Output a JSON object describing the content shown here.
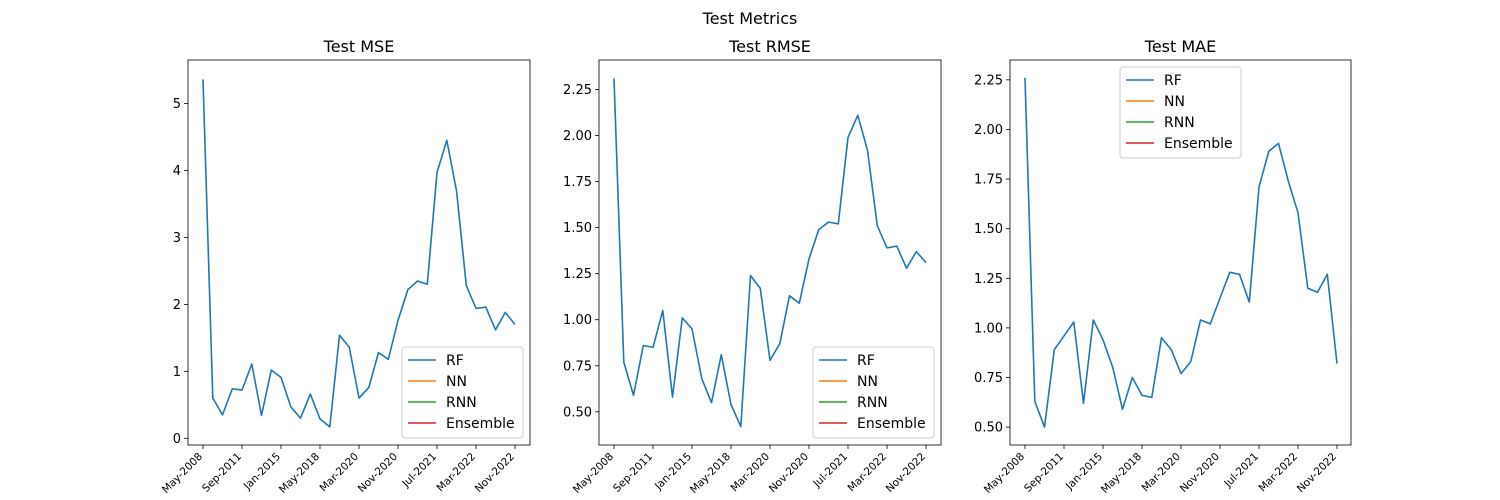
{
  "figure": {
    "suptitle": "Test Metrics"
  },
  "chart_data": [
    {
      "type": "line",
      "title": "Test MSE",
      "xlabel": "",
      "ylabel": "",
      "x_tick_labels": [
        "May-2008",
        "Sep-2011",
        "Jan-2015",
        "May-2018",
        "Mar-2020",
        "Nov-2020",
        "Jul-2021",
        "Mar-2022",
        "Nov-2022"
      ],
      "y_ticks": [
        0,
        1,
        2,
        3,
        4,
        5
      ],
      "ylim": [
        -0.1,
        5.65
      ],
      "legend": "lower-right",
      "series": [
        {
          "name": "RF",
          "color": "#1f77b4",
          "values": [
            5.36,
            0.6,
            0.35,
            0.74,
            0.72,
            1.11,
            0.34,
            1.02,
            0.91,
            0.47,
            0.3,
            0.66,
            0.29,
            0.17,
            1.54,
            1.36,
            0.6,
            0.76,
            1.28,
            1.18,
            1.76,
            2.22,
            2.35,
            2.3,
            3.97,
            4.45,
            3.7,
            2.28,
            1.94,
            1.96,
            1.62,
            1.88,
            1.7
          ]
        },
        {
          "name": "NN",
          "color": "#ff7f0e",
          "values": []
        },
        {
          "name": "RNN",
          "color": "#2ca02c",
          "values": []
        },
        {
          "name": "Ensemble",
          "color": "#d62728",
          "values": []
        }
      ]
    },
    {
      "type": "line",
      "title": "Test RMSE",
      "xlabel": "",
      "ylabel": "",
      "x_tick_labels": [
        "May-2008",
        "Sep-2011",
        "Jan-2015",
        "May-2018",
        "Mar-2020",
        "Nov-2020",
        "Jul-2021",
        "Mar-2022",
        "Nov-2022"
      ],
      "y_ticks": [
        0.5,
        0.75,
        1.0,
        1.25,
        1.5,
        1.75,
        2.0,
        2.25
      ],
      "ylim": [
        0.32,
        2.41
      ],
      "legend": "lower-right",
      "series": [
        {
          "name": "RF",
          "color": "#1f77b4",
          "values": [
            2.31,
            0.77,
            0.59,
            0.86,
            0.85,
            1.05,
            0.58,
            1.01,
            0.95,
            0.68,
            0.55,
            0.81,
            0.54,
            0.42,
            1.24,
            1.17,
            0.78,
            0.87,
            1.13,
            1.09,
            1.33,
            1.49,
            1.53,
            1.52,
            1.99,
            2.11,
            1.92,
            1.51,
            1.39,
            1.4,
            1.28,
            1.37,
            1.31
          ]
        },
        {
          "name": "NN",
          "color": "#ff7f0e",
          "values": []
        },
        {
          "name": "RNN",
          "color": "#2ca02c",
          "values": []
        },
        {
          "name": "Ensemble",
          "color": "#d62728",
          "values": []
        }
      ]
    },
    {
      "type": "line",
      "title": "Test MAE",
      "xlabel": "",
      "ylabel": "",
      "x_tick_labels": [
        "May-2008",
        "Sep-2011",
        "Jan-2015",
        "May-2018",
        "Mar-2020",
        "Nov-2020",
        "Jul-2021",
        "Mar-2022",
        "Nov-2022"
      ],
      "y_ticks": [
        0.5,
        0.75,
        1.0,
        1.25,
        1.5,
        1.75,
        2.0,
        2.25
      ],
      "ylim": [
        0.41,
        2.35
      ],
      "legend": "upper-center",
      "series": [
        {
          "name": "RF",
          "color": "#1f77b4",
          "values": [
            2.26,
            0.63,
            0.5,
            0.89,
            0.96,
            1.03,
            0.62,
            1.04,
            0.94,
            0.8,
            0.59,
            0.75,
            0.66,
            0.65,
            0.95,
            0.89,
            0.77,
            0.83,
            1.04,
            1.02,
            1.15,
            1.28,
            1.27,
            1.13,
            1.71,
            1.89,
            1.93,
            1.74,
            1.58,
            1.2,
            1.18,
            1.27,
            0.82
          ]
        },
        {
          "name": "NN",
          "color": "#ff7f0e",
          "values": []
        },
        {
          "name": "RNN",
          "color": "#2ca02c",
          "values": []
        },
        {
          "name": "Ensemble",
          "color": "#d62728",
          "values": []
        }
      ]
    }
  ]
}
